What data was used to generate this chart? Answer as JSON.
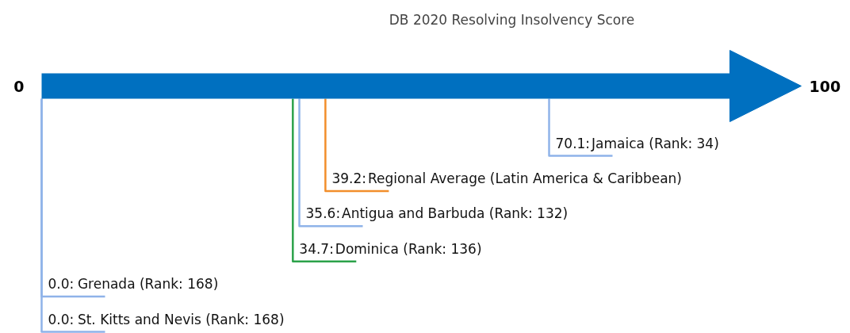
{
  "chart_data": {
    "type": "other",
    "title": "DB 2020 Resolving Insolvency Score",
    "categories": [
      "Jamaica (Rank: 34)",
      "Regional Average (Latin America & Caribbean)",
      "Antigua and Barbuda (Rank: 132)",
      "Dominica (Rank: 136)",
      "Grenada (Rank: 168)",
      "St. Kitts and Nevis (Rank: 168)"
    ],
    "values": [
      70.1,
      39.2,
      35.6,
      34.7,
      0.0,
      0.0
    ],
    "value_labels": [
      "70.1:",
      "39.2:",
      "35.6:",
      "34.7:",
      "0.0:",
      "0.0:"
    ],
    "colors": [
      "#8fb3e9",
      "#f28e2b",
      "#8fb3e9",
      "#2ca24a",
      "#8fb3e9",
      "#8fb3e9"
    ],
    "annotations": [
      "0",
      "100"
    ]
  }
}
